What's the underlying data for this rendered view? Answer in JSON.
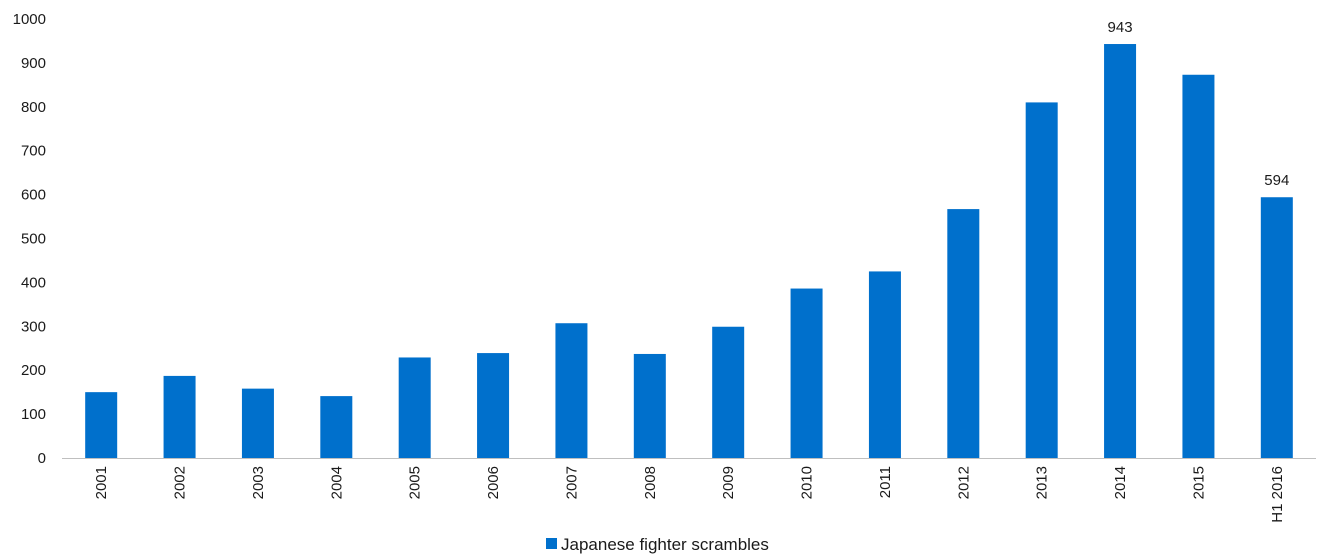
{
  "chart_data": {
    "type": "bar",
    "title": "",
    "xlabel": "",
    "ylabel": "",
    "categories": [
      "2001",
      "2002",
      "2003",
      "2004",
      "2005",
      "2006",
      "2007",
      "2008",
      "2009",
      "2010",
      "2011",
      "2012",
      "2013",
      "2014",
      "2015",
      "H1 2016"
    ],
    "series": [
      {
        "name": "Japanese fighter scrambles",
        "color": "#0070cc",
        "values": [
          150,
          187,
          158,
          141,
          229,
          239,
          307,
          237,
          299,
          386,
          425,
          567,
          810,
          943,
          873,
          594
        ]
      }
    ],
    "ylim": [
      0,
      1000
    ],
    "yticks": [
      0,
      100,
      200,
      300,
      400,
      500,
      600,
      700,
      800,
      900,
      1000
    ],
    "data_labels": [
      {
        "category": "2014",
        "text": "943"
      },
      {
        "category": "H1 2016",
        "text": "594"
      }
    ],
    "grid": false,
    "legend": {
      "position": "bottom-center"
    }
  }
}
